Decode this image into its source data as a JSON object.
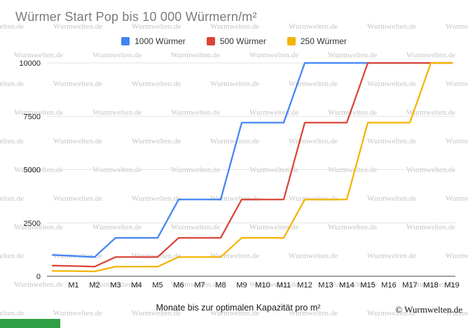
{
  "title": "Würmer Start Pop bis 10 000 Würmern/m²",
  "x_axis_title": "Monate bis zur optimalen Kapazität pro m²",
  "copyright": "© Wurmwelten.de",
  "watermark": {
    "text": "Wurmwelten.de"
  },
  "brand_bar_color": "#2f9e44",
  "chart_data": {
    "type": "line",
    "title": "Würmer Start Pop bis 10 000 Würmern/m²",
    "xlabel": "Monate bis zur optimalen Kapazität pro m²",
    "ylabel": "",
    "ylim": [
      0,
      10000
    ],
    "y_ticks": [
      0,
      2500,
      5000,
      7500,
      10000
    ],
    "grid": true,
    "legend_position": "top",
    "categories": [
      "",
      "M1",
      "M2",
      "M3",
      "M4",
      "M5",
      "M6",
      "M7",
      "M8",
      "M9",
      "M10",
      "M11",
      "M12",
      "M13",
      "M14",
      "M15",
      "M16",
      "M17",
      "M18",
      "M19"
    ],
    "series": [
      {
        "name": "1000 Würmer",
        "color": "#4285F4",
        "values": [
          1000,
          950,
          900,
          1800,
          1800,
          1800,
          3600,
          3600,
          3600,
          7200,
          7200,
          7200,
          10000,
          10000,
          10000,
          10000,
          10000,
          10000,
          10000,
          10000
        ]
      },
      {
        "name": "500 Würmer",
        "color": "#DB4437",
        "values": [
          500,
          480,
          450,
          900,
          900,
          900,
          1800,
          1800,
          1800,
          3600,
          3600,
          3600,
          7200,
          7200,
          7200,
          10000,
          10000,
          10000,
          10000,
          10000
        ]
      },
      {
        "name": "250 Würmer",
        "color": "#F4B400",
        "values": [
          250,
          240,
          225,
          450,
          450,
          450,
          900,
          900,
          900,
          1800,
          1800,
          1800,
          3600,
          3600,
          3600,
          7200,
          7200,
          7200,
          10000,
          10000
        ]
      }
    ]
  }
}
